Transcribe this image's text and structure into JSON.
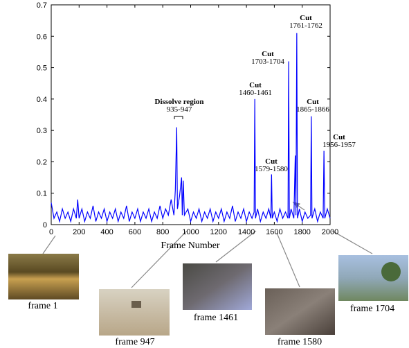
{
  "chart_data": {
    "type": "line",
    "xlabel": "Frame Number",
    "x": [
      0,
      20,
      40,
      60,
      80,
      100,
      120,
      140,
      160,
      180,
      190,
      200,
      220,
      240,
      260,
      280,
      300,
      320,
      340,
      360,
      380,
      400,
      420,
      440,
      460,
      480,
      500,
      520,
      540,
      560,
      580,
      600,
      620,
      640,
      660,
      680,
      700,
      720,
      740,
      760,
      780,
      800,
      820,
      840,
      860,
      880,
      890,
      900,
      905,
      920,
      935,
      940,
      947,
      955,
      980,
      1000,
      1020,
      1040,
      1060,
      1080,
      1100,
      1120,
      1140,
      1160,
      1180,
      1200,
      1220,
      1240,
      1260,
      1280,
      1300,
      1320,
      1340,
      1360,
      1380,
      1400,
      1420,
      1440,
      1455,
      1460,
      1465,
      1480,
      1500,
      1520,
      1540,
      1560,
      1575,
      1580,
      1585,
      1600,
      1620,
      1640,
      1660,
      1680,
      1698,
      1703,
      1708,
      1720,
      1740,
      1750,
      1755,
      1761,
      1766,
      1780,
      1800,
      1820,
      1840,
      1860,
      1865,
      1870,
      1890,
      1910,
      1930,
      1950,
      1956,
      1962,
      1980,
      2000
    ],
    "series": [
      {
        "color": "#0000ff",
        "values": [
          0.07,
          0.02,
          0.04,
          0.01,
          0.05,
          0.02,
          0.04,
          0.01,
          0.05,
          0.02,
          0.08,
          0.02,
          0.05,
          0.01,
          0.04,
          0.02,
          0.06,
          0.01,
          0.04,
          0.02,
          0.05,
          0.01,
          0.04,
          0.02,
          0.05,
          0.01,
          0.04,
          0.02,
          0.06,
          0.01,
          0.04,
          0.02,
          0.05,
          0.01,
          0.04,
          0.02,
          0.05,
          0.01,
          0.04,
          0.02,
          0.06,
          0.02,
          0.05,
          0.03,
          0.08,
          0.03,
          0.11,
          0.31,
          0.05,
          0.09,
          0.15,
          0.03,
          0.14,
          0.03,
          0.05,
          0.01,
          0.04,
          0.02,
          0.05,
          0.01,
          0.04,
          0.02,
          0.05,
          0.01,
          0.04,
          0.02,
          0.05,
          0.01,
          0.04,
          0.02,
          0.06,
          0.01,
          0.04,
          0.02,
          0.05,
          0.01,
          0.04,
          0.02,
          0.04,
          0.4,
          0.02,
          0.05,
          0.01,
          0.04,
          0.02,
          0.05,
          0.02,
          0.16,
          0.02,
          0.04,
          0.01,
          0.05,
          0.02,
          0.04,
          0.02,
          0.52,
          0.02,
          0.05,
          0.02,
          0.22,
          0.03,
          0.61,
          0.02,
          0.05,
          0.01,
          0.04,
          0.02,
          0.03,
          0.345,
          0.02,
          0.05,
          0.01,
          0.04,
          0.02,
          0.235,
          0.02,
          0.05,
          0.02
        ]
      }
    ],
    "xlim": [
      0,
      2000
    ],
    "xticks": [
      0,
      200,
      400,
      600,
      800,
      1000,
      1200,
      1400,
      1600,
      1800,
      2000
    ],
    "ylim": [
      0,
      0.7
    ],
    "yticks": [
      0,
      0.1,
      0.2,
      0.3,
      0.4,
      0.5,
      0.6,
      0.7
    ],
    "annotations": [
      {
        "title": "Dissolve region",
        "range": "935-947"
      },
      {
        "title": "Cut",
        "range": "1460-1461"
      },
      {
        "title": "Cut",
        "range": "1579-1580"
      },
      {
        "title": "Cut",
        "range": "1703-1704"
      },
      {
        "title": "Cut",
        "range": "1761-1762"
      },
      {
        "title": "Cut",
        "range": "1865-1866"
      },
      {
        "title": "Cut",
        "range": "1956-1957"
      }
    ],
    "frames": [
      "frame 1",
      "frame 947",
      "frame 1461",
      "frame 1580",
      "frame 1704"
    ]
  }
}
